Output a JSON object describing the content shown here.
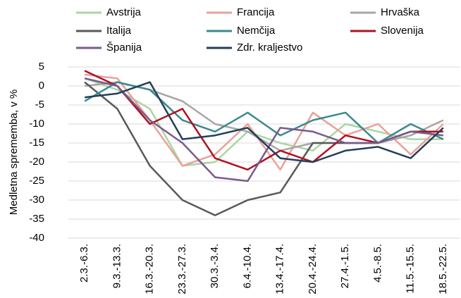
{
  "chart_data": {
    "type": "line",
    "y_label": "Medletna sprememba, v %",
    "categories": [
      "2.3.-6.3.",
      "9.3.-13.3.",
      "16.3.-20.3.",
      "23.3.-27.3.",
      "30.3.-3.4.",
      "6.4.-10.4.",
      "13.4.-17.4.",
      "20.4.-24.4.",
      "27.4.-1.5.",
      "4.5.-8.5.",
      "11.5.-15.5.",
      "18.5.-22.5."
    ],
    "ylim": [
      -40,
      5
    ],
    "yticks": [
      -40,
      -35,
      -30,
      -25,
      -20,
      -15,
      -10,
      -5,
      0,
      5
    ],
    "grid": true,
    "series": [
      {
        "name": "Avstrija",
        "color": "#a9d6a1",
        "values": [
          2,
          -1,
          -6,
          -21,
          -20,
          -12,
          -15,
          -17,
          -10,
          -12,
          -14,
          -14
        ]
      },
      {
        "name": "Francija",
        "color": "#e9a19b",
        "values": [
          3,
          2,
          -9,
          -21,
          -18,
          -10,
          -22,
          -7,
          -13,
          -10,
          -18,
          -10
        ]
      },
      {
        "name": "Hrvaška",
        "color": "#a6a6a6",
        "values": [
          0,
          1,
          -1,
          -4,
          -10,
          -12,
          -17,
          -15,
          -15,
          -15,
          -13,
          -9
        ]
      },
      {
        "name": "Italija",
        "color": "#595959",
        "values": [
          1,
          -6,
          -21,
          -30,
          -34,
          -30,
          -28,
          -15,
          -15,
          -15,
          -12,
          -12
        ]
      },
      {
        "name": "Nemčija",
        "color": "#3b8a8f",
        "values": [
          -4,
          1,
          -1,
          -9,
          -12,
          -7,
          -13,
          -9,
          -7,
          -15,
          -10,
          -14
        ]
      },
      {
        "name": "Slovenija",
        "color": "#b0121f",
        "values": [
          4,
          0,
          -10,
          -6,
          -19,
          -22,
          -17,
          -20,
          -13,
          -15,
          -12,
          -12
        ]
      },
      {
        "name": "Španija",
        "color": "#7a5a8e",
        "values": [
          2,
          0,
          -9,
          -15,
          -24,
          -25,
          -11,
          -12,
          -15,
          -15,
          -12,
          -13
        ]
      },
      {
        "name": "Zdr. kraljestvo",
        "color": "#243f5a",
        "values": [
          -3,
          -2,
          1,
          -14,
          -13,
          -11,
          -19,
          -20,
          -17,
          -16,
          -19,
          -11
        ]
      }
    ]
  }
}
